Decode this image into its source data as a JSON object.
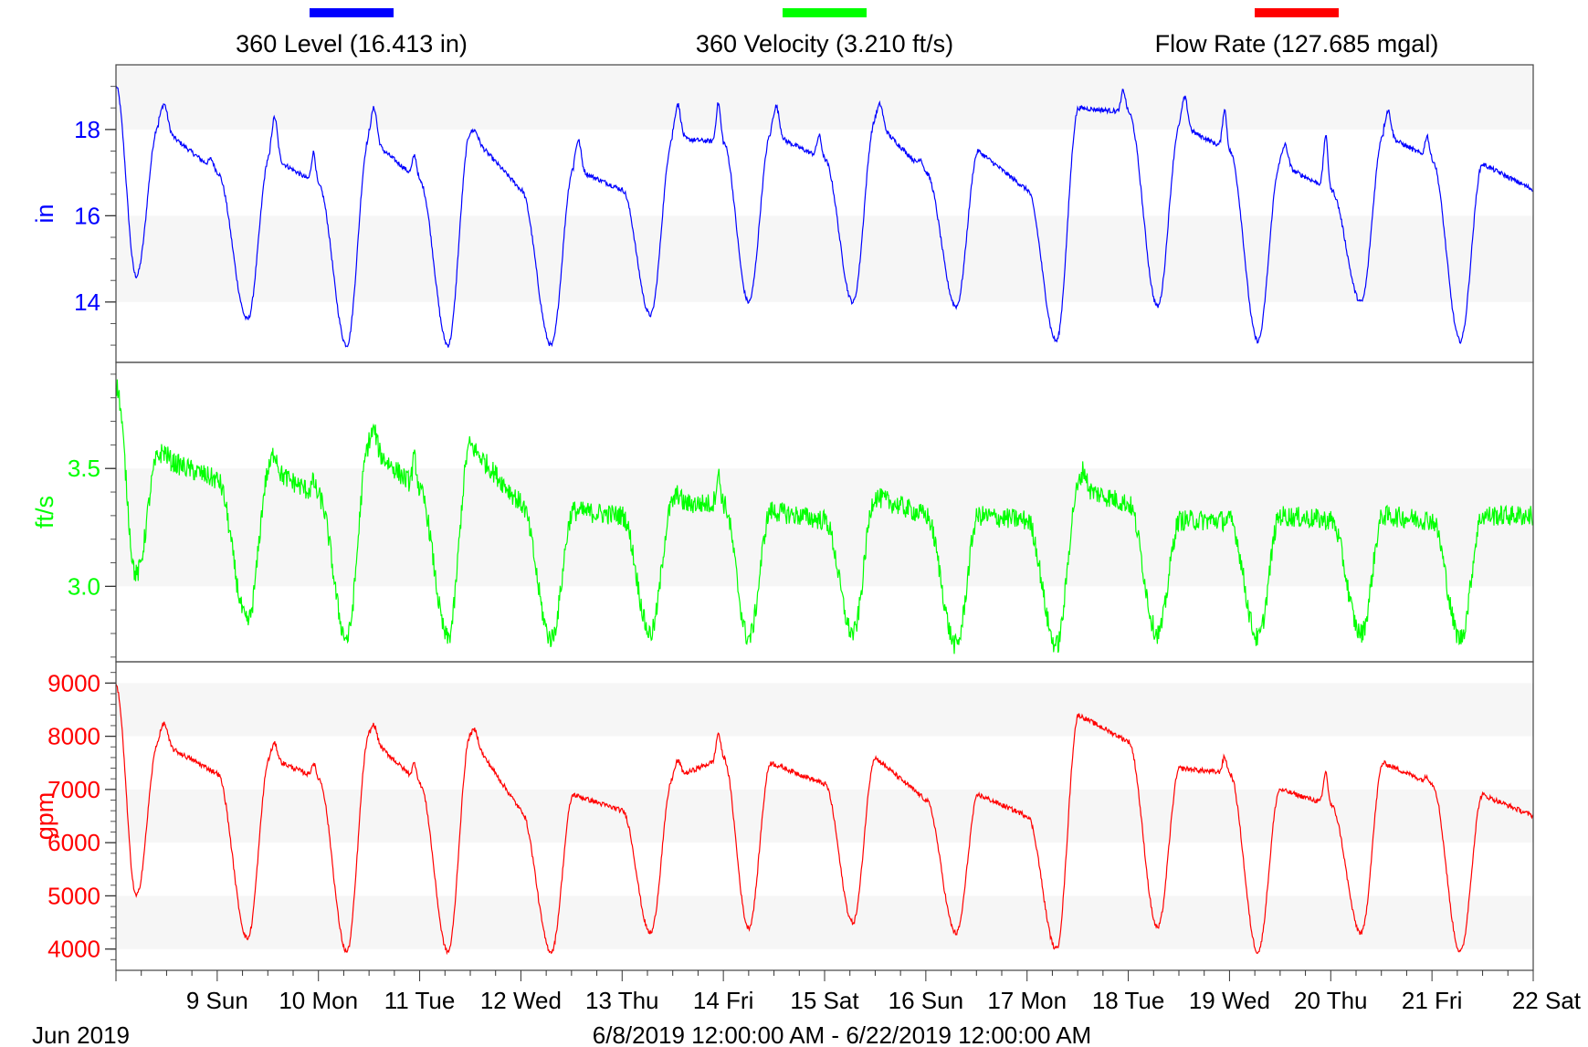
{
  "legend": [
    {
      "label": "360 Level (16.413 in)",
      "color": "#0000ff"
    },
    {
      "label": "360 Velocity (3.210 ft/s)",
      "color": "#00ff00"
    },
    {
      "label": "Flow Rate (127.685 mgal)",
      "color": "#ff0000"
    }
  ],
  "footer": {
    "month": "Jun 2019",
    "range": "6/8/2019 12:00:00 AM - 6/22/2019 12:00:00 AM"
  },
  "chart_data": {
    "type": "line",
    "x_axis": {
      "start": "2019-06-08T00:00",
      "end": "2019-06-22T00:00",
      "tick_labels": [
        "9 Sun",
        "10 Mon",
        "11 Tue",
        "12 Wed",
        "13 Thu",
        "14 Fri",
        "15 Sat",
        "16 Sun",
        "17 Mon",
        "18 Tue",
        "19 Wed",
        "20 Thu",
        "21 Fri",
        "22 Sat"
      ]
    },
    "panels": [
      {
        "name": "level",
        "ylabel": "in",
        "color": "#0000ff",
        "ylim": [
          12.6,
          19.5
        ],
        "ticks": [
          14,
          16,
          18
        ],
        "tick_labels": [
          "14",
          "16",
          "18"
        ],
        "minor_step": 0.5,
        "bands": [
          [
            14,
            16
          ],
          [
            18,
            19.5
          ]
        ],
        "series_name": "360 Level",
        "start_value": 19.0,
        "daily": {
          "min_time": [
            0.2,
            0.3,
            0.28,
            0.28,
            0.3,
            0.28,
            0.25,
            0.28,
            0.3,
            0.29,
            0.29,
            0.28,
            0.3,
            0.28
          ],
          "min": [
            14.6,
            13.6,
            13.0,
            13.0,
            13.0,
            13.7,
            14.0,
            14.0,
            13.9,
            13.1,
            13.9,
            13.1,
            14.0,
            13.1
          ],
          "high": [
            18.1,
            17.4,
            17.8,
            17.9,
            17.1,
            17.8,
            17.9,
            18.2,
            17.5,
            18.5,
            18.1,
            17.2,
            17.9,
            17.2
          ],
          "end": [
            17.0,
            16.7,
            16.8,
            16.6,
            16.6,
            17.7,
            17.3,
            17.0,
            16.6,
            18.4,
            17.5,
            16.6,
            17.3,
            16.6
          ],
          "pk": [
            [
              0.6,
              0.2
            ],
            [
              0.95,
              0.7
            ],
            [
              0.8,
              0.5
            ],
            [
              0.2,
              0.0
            ],
            [
              0.7,
              0.0
            ],
            [
              0.8,
              0.9
            ],
            [
              0.7,
              0.5
            ],
            [
              0.5,
              0.2
            ],
            [
              0.0,
              0.0
            ],
            [
              0.0,
              0.5
            ],
            [
              0.7,
              0.9
            ],
            [
              0.5,
              1.2
            ],
            [
              0.6,
              0.5
            ],
            [
              0.0,
              0.0
            ]
          ]
        }
      },
      {
        "name": "velocity",
        "ylabel": "ft/s",
        "color": "#00ff00",
        "ylim": [
          2.68,
          3.95
        ],
        "ticks": [
          3.0,
          3.5
        ],
        "tick_labels": [
          "3.0",
          "3.5"
        ],
        "minor_step": 0.1,
        "bands": [
          [
            3.0,
            3.5
          ]
        ],
        "series_name": "360 Velocity",
        "start_value": 3.85,
        "daily": {
          "min_time": [
            0.2,
            0.3,
            0.28,
            0.28,
            0.3,
            0.28,
            0.25,
            0.28,
            0.3,
            0.29,
            0.29,
            0.28,
            0.3,
            0.28
          ],
          "min": [
            3.05,
            2.85,
            2.78,
            2.78,
            2.78,
            2.8,
            2.78,
            2.8,
            2.75,
            2.75,
            2.8,
            2.78,
            2.8,
            2.78
          ],
          "high": [
            3.55,
            3.5,
            3.6,
            3.6,
            3.32,
            3.35,
            3.32,
            3.38,
            3.3,
            3.42,
            3.28,
            3.3,
            3.3,
            3.3
          ],
          "end": [
            3.45,
            3.38,
            3.4,
            3.35,
            3.3,
            3.35,
            3.28,
            3.3,
            3.28,
            3.35,
            3.28,
            3.28,
            3.28,
            3.3
          ],
          "pk": [
            [
              0.03,
              0.0
            ],
            [
              0.08,
              0.05
            ],
            [
              0.08,
              0.12
            ],
            [
              0.0,
              0.0
            ],
            [
              0.0,
              0.0
            ],
            [
              0.04,
              0.12
            ],
            [
              0.0,
              0.0
            ],
            [
              0.0,
              0.0
            ],
            [
              0.0,
              0.0
            ],
            [
              0.08,
              0.0
            ],
            [
              0.0,
              0.0
            ],
            [
              0.0,
              0.0
            ],
            [
              0.0,
              0.0
            ],
            [
              0.0,
              0.0
            ]
          ]
        }
      },
      {
        "name": "flow",
        "ylabel": "gpm",
        "color": "#ff0000",
        "ylim": [
          3600,
          9400
        ],
        "ticks": [
          4000,
          5000,
          6000,
          7000,
          8000,
          9000
        ],
        "tick_labels": [
          "4000",
          "5000",
          "6000",
          "7000",
          "8000",
          "9000"
        ],
        "minor_step": 200,
        "bands": [
          [
            4000,
            5000
          ],
          [
            6000,
            7000
          ],
          [
            8000,
            9000
          ]
        ],
        "series_name": "Flow Rate",
        "start_value": 8950,
        "daily": {
          "min_time": [
            0.2,
            0.3,
            0.28,
            0.28,
            0.3,
            0.28,
            0.25,
            0.28,
            0.3,
            0.29,
            0.29,
            0.28,
            0.3,
            0.28
          ],
          "min": [
            5000,
            4200,
            3950,
            3950,
            3950,
            4300,
            4400,
            4500,
            4300,
            4000,
            4400,
            3950,
            4300,
            3950
          ],
          "high": [
            7900,
            7600,
            8000,
            8000,
            6900,
            7200,
            7500,
            7600,
            6900,
            8400,
            7400,
            7000,
            7500,
            6900
          ],
          "end": [
            7300,
            7200,
            7100,
            6600,
            6600,
            7600,
            7100,
            6800,
            6500,
            7900,
            7300,
            6700,
            7100,
            6500
          ],
          "pk": [
            [
              400,
              0
            ],
            [
              300,
              250
            ],
            [
              300,
              300
            ],
            [
              250,
              0
            ],
            [
              0,
              0
            ],
            [
              300,
              500
            ],
            [
              0,
              0
            ],
            [
              0,
              0
            ],
            [
              0,
              0
            ],
            [
              0,
              0
            ],
            [
              0,
              300
            ],
            [
              0,
              600
            ],
            [
              0,
              100
            ],
            [
              0,
              0
            ]
          ]
        }
      }
    ]
  }
}
